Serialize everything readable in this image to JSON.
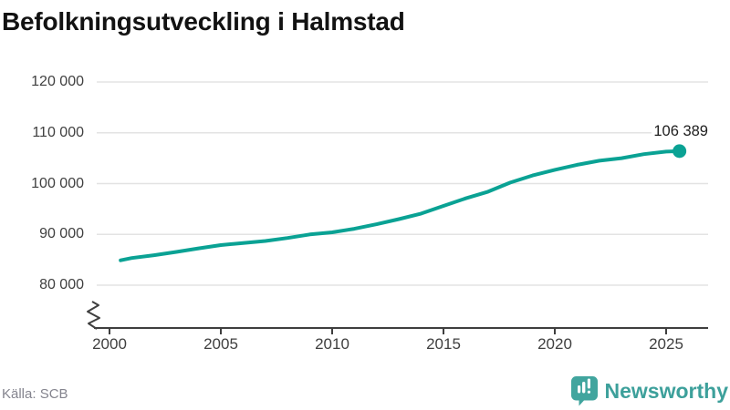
{
  "title": "Befolkningsutveckling i Halmstad",
  "source": "Källa: SCB",
  "logo": {
    "text": "Newsworthy",
    "icon": "newsworthy-speech-bubble-bar-chart",
    "text_color": "#3da09b",
    "icon_color": "#41a59e"
  },
  "colors": {
    "background": "#ffffff",
    "line": "#0aa294",
    "grid": "#e3e3e3",
    "axis": "#3f3f3f",
    "tick_label": "#3f3f3f",
    "title": "#121212",
    "source": "#84848e",
    "value_label": "#1e1e1e"
  },
  "chart_data": {
    "type": "line",
    "title": "Befolkningsutveckling i Halmstad",
    "x": [
      2000.5,
      2001,
      2002,
      2003,
      2004,
      2005,
      2006,
      2007,
      2008,
      2009,
      2010,
      2011,
      2012,
      2013,
      2014,
      2015,
      2016,
      2017,
      2018,
      2019,
      2020,
      2021,
      2022,
      2023,
      2024,
      2025,
      2025.6
    ],
    "values": [
      84900,
      85350,
      85900,
      86550,
      87250,
      87900,
      88300,
      88700,
      89300,
      90000,
      90400,
      91100,
      92000,
      93000,
      94100,
      95600,
      97100,
      98400,
      100200,
      101600,
      102700,
      103700,
      104500,
      105000,
      105800,
      106300,
      106389
    ],
    "latest_point": {
      "x": 2025.6,
      "value": 106389,
      "label": "106 389"
    },
    "xticks": [
      2000,
      2005,
      2010,
      2015,
      2020,
      2025
    ],
    "xtick_labels": [
      "2000",
      "2005",
      "2010",
      "2015",
      "2020",
      "2025"
    ],
    "yticks": [
      80000,
      90000,
      100000,
      110000,
      120000
    ],
    "ytick_labels": [
      "80 000",
      "90 000",
      "100 000",
      "110 000",
      "120 000"
    ],
    "ylim_displayed": [
      80000,
      120000
    ],
    "axis_break": true,
    "grid": "horizontal",
    "legend": "none",
    "xlabel": "",
    "ylabel": ""
  }
}
